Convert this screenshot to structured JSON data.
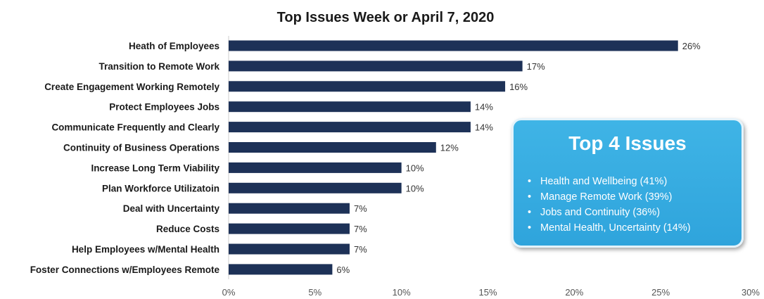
{
  "chart_data": {
    "type": "bar",
    "orientation": "horizontal",
    "title": "Top Issues Week or April 7, 2020",
    "categories": [
      "Heath of Employees",
      "Transition to Remote Work",
      "Create Engagement Working Remotely",
      "Protect Employees Jobs",
      "Communicate Frequently and Clearly",
      "Continuity of Business Operations",
      "Increase Long Term Viability",
      "Plan Workforce Utilizatoin",
      "Deal with Uncertainty",
      "Reduce Costs",
      "Help Employees w/Mental Health",
      "Foster Connections w/Employees Remote"
    ],
    "values": [
      26,
      17,
      16,
      14,
      14,
      12,
      10,
      10,
      7,
      7,
      7,
      6
    ],
    "value_labels": [
      "26%",
      "17%",
      "16%",
      "14%",
      "14%",
      "12%",
      "10%",
      "10%",
      "7%",
      "7%",
      "7%",
      "6%"
    ],
    "xlim": [
      0,
      30
    ],
    "xticks": [
      0,
      5,
      10,
      15,
      20,
      25,
      30
    ],
    "xtick_labels": [
      "0%",
      "5%",
      "10%",
      "15%",
      "20%",
      "25%",
      "30%"
    ],
    "xlabel": "",
    "ylabel": "",
    "grid": false,
    "bar_color": "#1d3157"
  },
  "callout": {
    "title": "Top 4 Issues",
    "bullet": "•",
    "items": [
      "Health and Wellbeing (41%)",
      "Manage Remote Work (39%)",
      "Jobs and Continuity (36%)",
      "Mental Health, Uncertainty (14%)"
    ],
    "background_color": "#3aaee2"
  }
}
